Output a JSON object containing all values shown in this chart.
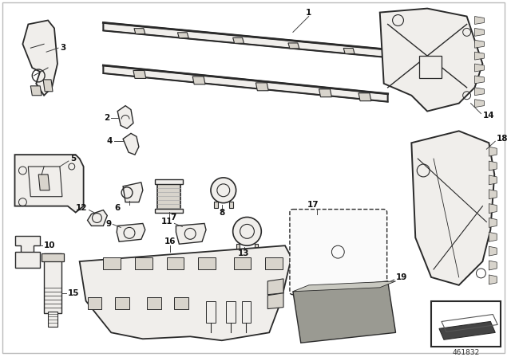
{
  "background_color": "#ffffff",
  "ref_number": "461832",
  "fig_width": 6.4,
  "fig_height": 4.48,
  "dpi": 100,
  "line_color": "#2a2a2a",
  "text_color": "#111111",
  "label_fontsize": 7.5,
  "fill_light": "#f0eeeb",
  "fill_mid": "#d8d4cc",
  "fill_dark": "#888880"
}
